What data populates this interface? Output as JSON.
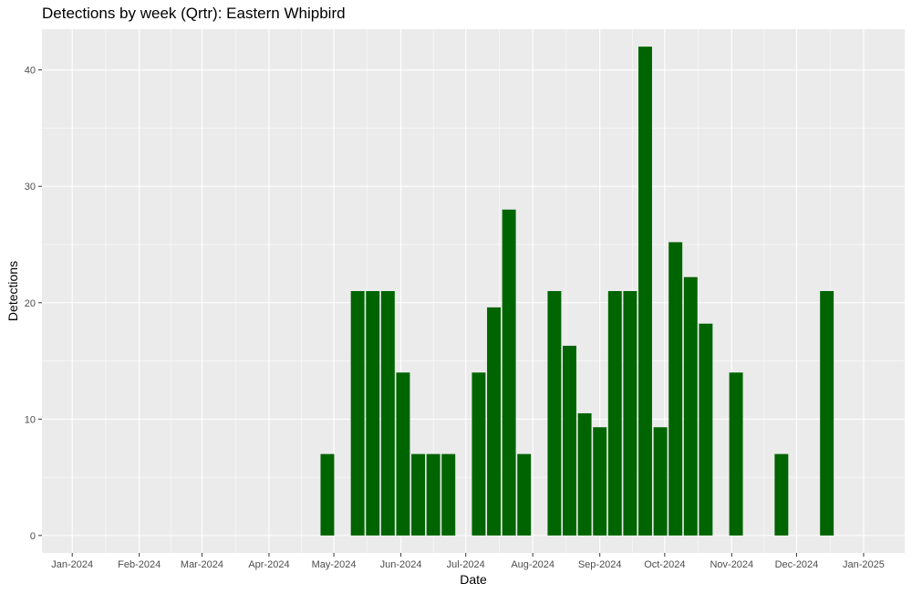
{
  "chart_data": {
    "type": "bar",
    "title": "Detections by week (Qrtr): Eastern Whipbird",
    "xlabel": "Date",
    "ylabel": "Detections",
    "ylim": [
      -1.5,
      43.5
    ],
    "yticks": [
      0,
      10,
      20,
      30,
      40
    ],
    "xlim": [
      "2023-12-18",
      "2025-01-20"
    ],
    "xticks": [
      {
        "date": "2024-01-01",
        "label": "Jan-2024"
      },
      {
        "date": "2024-02-01",
        "label": "Feb-2024"
      },
      {
        "date": "2024-03-01",
        "label": "Mar-2024"
      },
      {
        "date": "2024-04-01",
        "label": "Apr-2024"
      },
      {
        "date": "2024-05-01",
        "label": "May-2024"
      },
      {
        "date": "2024-06-01",
        "label": "Jun-2024"
      },
      {
        "date": "2024-07-01",
        "label": "Jul-2024"
      },
      {
        "date": "2024-08-01",
        "label": "Aug-2024"
      },
      {
        "date": "2024-09-01",
        "label": "Sep-2024"
      },
      {
        "date": "2024-10-01",
        "label": "Oct-2024"
      },
      {
        "date": "2024-11-01",
        "label": "Nov-2024"
      },
      {
        "date": "2024-12-01",
        "label": "Dec-2024"
      },
      {
        "date": "2025-01-01",
        "label": "Jan-2025"
      }
    ],
    "bar_width_days": 6.3,
    "points": [
      {
        "x": "2024-04-28",
        "y": 7
      },
      {
        "x": "2024-05-12",
        "y": 21
      },
      {
        "x": "2024-05-19",
        "y": 21
      },
      {
        "x": "2024-05-26",
        "y": 21
      },
      {
        "x": "2024-06-02",
        "y": 14
      },
      {
        "x": "2024-06-09",
        "y": 7
      },
      {
        "x": "2024-06-16",
        "y": 7
      },
      {
        "x": "2024-06-23",
        "y": 7
      },
      {
        "x": "2024-07-07",
        "y": 14
      },
      {
        "x": "2024-07-14",
        "y": 19.6
      },
      {
        "x": "2024-07-21",
        "y": 28
      },
      {
        "x": "2024-07-28",
        "y": 7
      },
      {
        "x": "2024-08-11",
        "y": 21
      },
      {
        "x": "2024-08-18",
        "y": 16.3
      },
      {
        "x": "2024-08-25",
        "y": 10.5
      },
      {
        "x": "2024-09-01",
        "y": 9.3
      },
      {
        "x": "2024-09-08",
        "y": 21
      },
      {
        "x": "2024-09-15",
        "y": 21
      },
      {
        "x": "2024-09-22",
        "y": 42
      },
      {
        "x": "2024-09-29",
        "y": 9.3
      },
      {
        "x": "2024-10-06",
        "y": 25.2
      },
      {
        "x": "2024-10-13",
        "y": 22.2
      },
      {
        "x": "2024-10-20",
        "y": 18.2
      },
      {
        "x": "2024-11-03",
        "y": 14
      },
      {
        "x": "2024-11-24",
        "y": 7
      },
      {
        "x": "2024-12-15",
        "y": 21
      }
    ],
    "bar_color": "#006400",
    "panel_background": "#ebebeb",
    "grid": true,
    "legend": "none"
  }
}
